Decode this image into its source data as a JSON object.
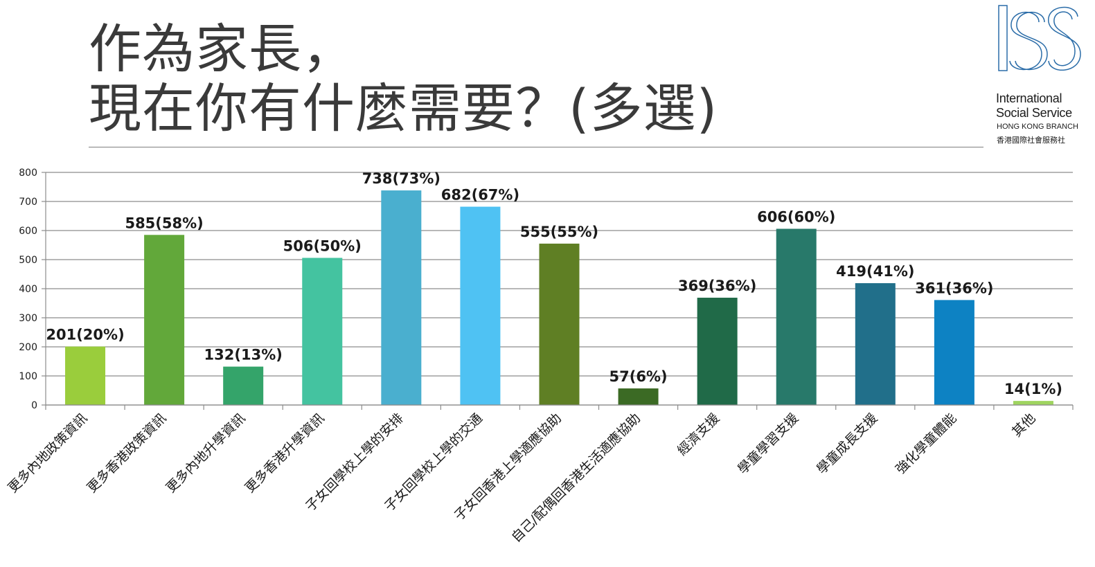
{
  "title": {
    "line1": "作為家長，",
    "line2": "現在你有什麼需要？(多選)"
  },
  "logo": {
    "line1": "International",
    "line2": "Social Service",
    "line3": "HONG KONG BRANCH",
    "line4": "香港國際社會服務社",
    "mark_text": "ISS",
    "mark_color": "#2a6ca8"
  },
  "chart_data": {
    "type": "bar",
    "categories": [
      "更多內地政策資訊",
      "更多香港政策資訊",
      "更多內地升學資訊",
      "更多香港升學資訊",
      "子女回學校上學的安排",
      "子女回學校上學的交通",
      "子女回香港上學適應協助",
      "自己/配偶回香港生活適應協助",
      "經濟支援",
      "學童學習支援",
      "學童成長支援",
      "強化學童體能",
      "其他"
    ],
    "values": [
      201,
      585,
      132,
      506,
      738,
      682,
      555,
      57,
      369,
      606,
      419,
      361,
      14
    ],
    "data_labels": [
      "201(20%)",
      "585(58%)",
      "132(13%)",
      "506(50%)",
      "738(73%)",
      "682(67%)",
      "555(55%)",
      "57(6%)",
      "369(36%)",
      "606(60%)",
      "419(41%)",
      "361(36%)",
      "14(1%)"
    ],
    "colors": [
      "#9acd3c",
      "#62a83a",
      "#34a46a",
      "#44c3a0",
      "#4aafcf",
      "#4fc2f3",
      "#5f7f24",
      "#3b6a24",
      "#206a48",
      "#28796a",
      "#216f8a",
      "#0d82c3",
      "#9fd45f"
    ],
    "yticks": [
      0,
      100,
      200,
      300,
      400,
      500,
      600,
      700,
      800
    ],
    "ylim": [
      0,
      800
    ],
    "grid": true,
    "title": "",
    "xlabel": "",
    "ylabel": ""
  }
}
